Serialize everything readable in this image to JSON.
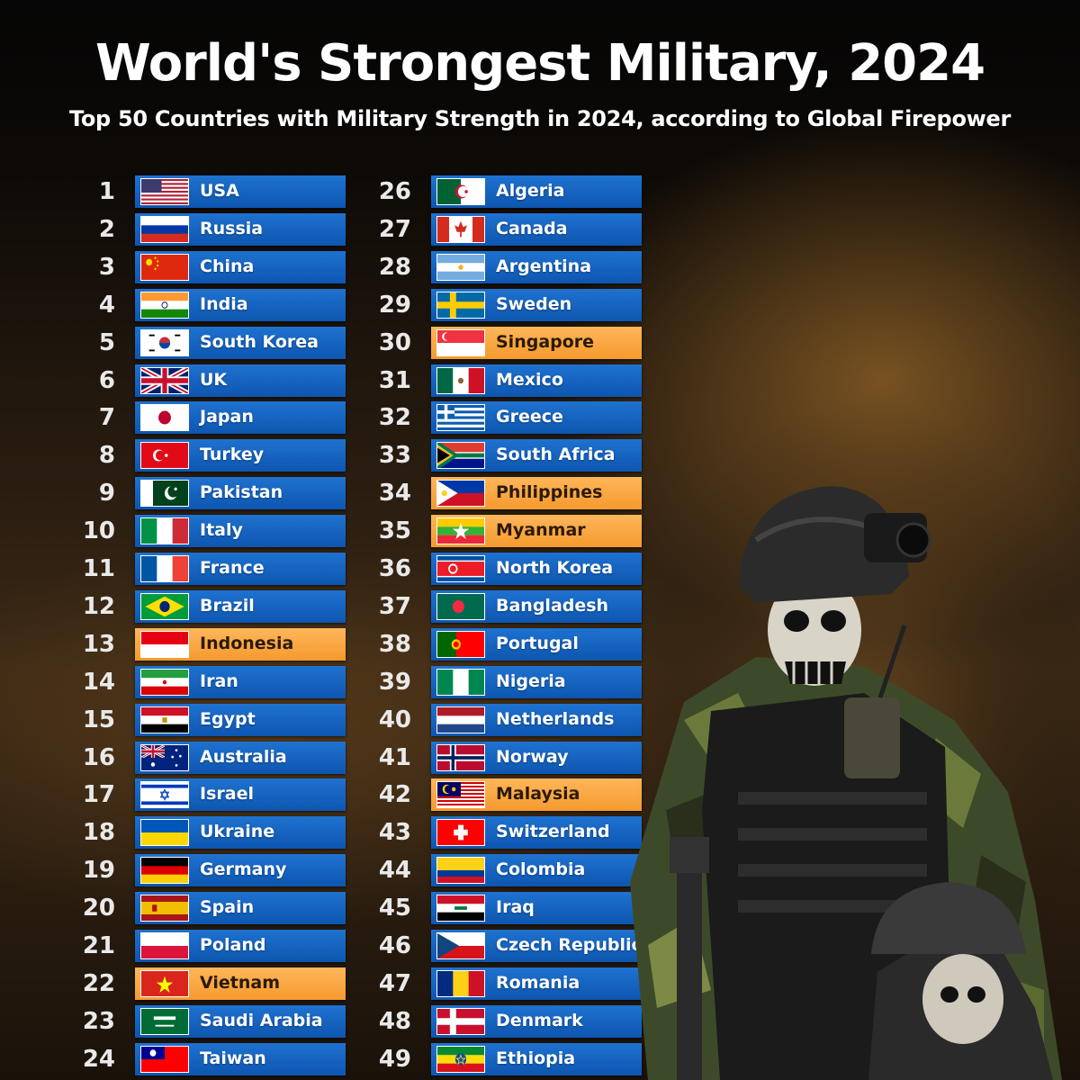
{
  "title": "World's Strongest Military, 2024",
  "subtitle": "Top 50 Countries with Military Strength in 2024, according to Global Firepower",
  "colors": {
    "blue_bar": "#1565c0",
    "highlight_bar": "#f9a03f"
  },
  "chart_data": {
    "type": "table",
    "title": "World's Strongest Military, 2024",
    "subtitle": "Top 50 Countries with Military Strength in 2024, according to Global Firepower",
    "rows": [
      {
        "rank": "1",
        "country": "USA",
        "highlight": false,
        "flag": "usa-flag-icon"
      },
      {
        "rank": "2",
        "country": "Russia",
        "highlight": false,
        "flag": "russia-flag-icon"
      },
      {
        "rank": "3",
        "country": "China",
        "highlight": false,
        "flag": "china-flag-icon"
      },
      {
        "rank": "4",
        "country": "India",
        "highlight": false,
        "flag": "india-flag-icon"
      },
      {
        "rank": "5",
        "country": "South Korea",
        "highlight": false,
        "flag": "south-korea-flag-icon"
      },
      {
        "rank": "6",
        "country": "UK",
        "highlight": false,
        "flag": "uk-flag-icon"
      },
      {
        "rank": "7",
        "country": "Japan",
        "highlight": false,
        "flag": "japan-flag-icon"
      },
      {
        "rank": "8",
        "country": "Turkey",
        "highlight": false,
        "flag": "turkey-flag-icon"
      },
      {
        "rank": "9",
        "country": "Pakistan",
        "highlight": false,
        "flag": "pakistan-flag-icon"
      },
      {
        "rank": "10",
        "country": "Italy",
        "highlight": false,
        "flag": "italy-flag-icon"
      },
      {
        "rank": "11",
        "country": "France",
        "highlight": false,
        "flag": "france-flag-icon"
      },
      {
        "rank": "12",
        "country": "Brazil",
        "highlight": false,
        "flag": "brazil-flag-icon"
      },
      {
        "rank": "13",
        "country": "Indonesia",
        "highlight": true,
        "flag": "indonesia-flag-icon"
      },
      {
        "rank": "14",
        "country": "Iran",
        "highlight": false,
        "flag": "iran-flag-icon"
      },
      {
        "rank": "15",
        "country": "Egypt",
        "highlight": false,
        "flag": "egypt-flag-icon"
      },
      {
        "rank": "16",
        "country": "Australia",
        "highlight": false,
        "flag": "australia-flag-icon"
      },
      {
        "rank": "17",
        "country": "Israel",
        "highlight": false,
        "flag": "israel-flag-icon"
      },
      {
        "rank": "18",
        "country": "Ukraine",
        "highlight": false,
        "flag": "ukraine-flag-icon"
      },
      {
        "rank": "19",
        "country": "Germany",
        "highlight": false,
        "flag": "germany-flag-icon"
      },
      {
        "rank": "20",
        "country": "Spain",
        "highlight": false,
        "flag": "spain-flag-icon"
      },
      {
        "rank": "21",
        "country": "Poland",
        "highlight": false,
        "flag": "poland-flag-icon"
      },
      {
        "rank": "22",
        "country": "Vietnam",
        "highlight": true,
        "flag": "vietnam-flag-icon"
      },
      {
        "rank": "23",
        "country": "Saudi Arabia",
        "highlight": false,
        "flag": "saudi-arabia-flag-icon"
      },
      {
        "rank": "24",
        "country": "Taiwan",
        "highlight": false,
        "flag": "taiwan-flag-icon"
      },
      {
        "rank": "26",
        "country": "Algeria",
        "highlight": false,
        "flag": "algeria-flag-icon"
      },
      {
        "rank": "27",
        "country": "Canada",
        "highlight": false,
        "flag": "canada-flag-icon"
      },
      {
        "rank": "28",
        "country": "Argentina",
        "highlight": false,
        "flag": "argentina-flag-icon"
      },
      {
        "rank": "29",
        "country": "Sweden",
        "highlight": false,
        "flag": "sweden-flag-icon"
      },
      {
        "rank": "30",
        "country": "Singapore",
        "highlight": true,
        "flag": "singapore-flag-icon"
      },
      {
        "rank": "31",
        "country": "Mexico",
        "highlight": false,
        "flag": "mexico-flag-icon"
      },
      {
        "rank": "32",
        "country": "Greece",
        "highlight": false,
        "flag": "greece-flag-icon"
      },
      {
        "rank": "33",
        "country": "South Africa",
        "highlight": false,
        "flag": "south-africa-flag-icon"
      },
      {
        "rank": "34",
        "country": "Philippines",
        "highlight": true,
        "flag": "philippines-flag-icon"
      },
      {
        "rank": "35",
        "country": "Myanmar",
        "highlight": true,
        "flag": "myanmar-flag-icon"
      },
      {
        "rank": "36",
        "country": "North Korea",
        "highlight": false,
        "flag": "north-korea-flag-icon"
      },
      {
        "rank": "37",
        "country": "Bangladesh",
        "highlight": false,
        "flag": "bangladesh-flag-icon"
      },
      {
        "rank": "38",
        "country": "Portugal",
        "highlight": false,
        "flag": "portugal-flag-icon"
      },
      {
        "rank": "39",
        "country": "Nigeria",
        "highlight": false,
        "flag": "nigeria-flag-icon"
      },
      {
        "rank": "40",
        "country": "Netherlands",
        "highlight": false,
        "flag": "netherlands-flag-icon"
      },
      {
        "rank": "41",
        "country": "Norway",
        "highlight": false,
        "flag": "norway-flag-icon"
      },
      {
        "rank": "42",
        "country": "Malaysia",
        "highlight": true,
        "flag": "malaysia-flag-icon"
      },
      {
        "rank": "43",
        "country": "Switzerland",
        "highlight": false,
        "flag": "switzerland-flag-icon"
      },
      {
        "rank": "44",
        "country": "Colombia",
        "highlight": false,
        "flag": "colombia-flag-icon"
      },
      {
        "rank": "45",
        "country": "Iraq",
        "highlight": false,
        "flag": "iraq-flag-icon"
      },
      {
        "rank": "46",
        "country": "Czech Republic",
        "highlight": false,
        "flag": "czech-republic-flag-icon"
      },
      {
        "rank": "47",
        "country": "Romania",
        "highlight": false,
        "flag": "romania-flag-icon"
      },
      {
        "rank": "48",
        "country": "Denmark",
        "highlight": false,
        "flag": "denmark-flag-icon"
      },
      {
        "rank": "49",
        "country": "Ethiopia",
        "highlight": false,
        "flag": "ethiopia-flag-icon"
      }
    ]
  }
}
